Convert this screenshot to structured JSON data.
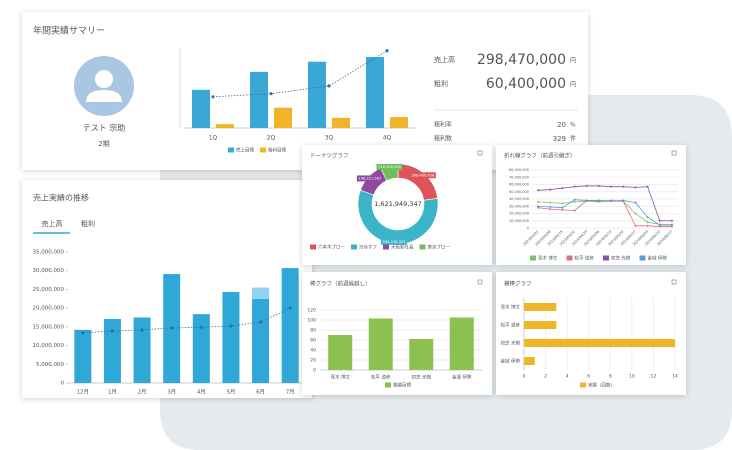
{
  "summary": {
    "title": "年間実績サマリー",
    "user_name": "テスト 宗助",
    "term": "2期",
    "stats": [
      {
        "label": "売上高",
        "value": "298,470,000",
        "unit": "円"
      },
      {
        "label": "粗利",
        "value": "60,400,000",
        "unit": "円"
      },
      {
        "label": "粗利率",
        "value": "20",
        "unit": "%"
      },
      {
        "label": "粗利数",
        "value": "329",
        "unit": "件"
      }
    ]
  },
  "trend": {
    "title": "売上実績の推移",
    "tabs": [
      "売上高",
      "粗利"
    ]
  },
  "chart_data": [
    {
      "type": "bar",
      "categories": [
        "1Q",
        "2Q",
        "3Q",
        "4Q"
      ],
      "ylim": [
        0,
        100
      ],
      "series": [
        {
          "name": "売上目標",
          "color": "#3aa7d6",
          "values": [
            49,
            72,
            85,
            91
          ]
        },
        {
          "name": "粗利目標",
          "color": "#f0b429",
          "values": [
            5,
            26,
            13,
            14
          ]
        },
        {
          "type": "line",
          "style": "dotted",
          "color": "#2e6fa8",
          "values": [
            40,
            44,
            54,
            99
          ]
        }
      ]
    },
    {
      "type": "bar",
      "stacked": true,
      "categories": [
        "12月",
        "1月",
        "2月",
        "3月",
        "4月",
        "5月",
        "6月",
        "7月"
      ],
      "ylim": [
        0,
        35000000
      ],
      "yticks": [
        0,
        {
          "value": 5000000,
          "label": "5,000,000"
        },
        {
          "value": 10000000,
          "label": "10,000,000"
        },
        {
          "value": 15000000,
          "label": "15,000,000"
        },
        {
          "value": 20000000,
          "label": "20,000,000"
        },
        {
          "value": 25000000,
          "label": "25,000,000"
        },
        {
          "value": 30000000,
          "label": "30,000,000"
        },
        {
          "value": 35000000,
          "label": "35,000,000"
        }
      ],
      "series": [
        {
          "color": "#2fa8d8",
          "values": [
            14200000,
            17100000,
            17500000,
            29100000,
            18400000,
            24300000,
            22500000,
            30700000
          ]
        },
        {
          "color": "#8fd3ee",
          "values": [
            null,
            null,
            null,
            null,
            null,
            null,
            3000000,
            null
          ]
        },
        {
          "type": "line",
          "style": "dotted",
          "color": "#2e6fa8",
          "values": [
            13400000,
            13900000,
            14200000,
            14700000,
            14900000,
            15200000,
            16300000,
            20000000
          ]
        }
      ]
    },
    {
      "type": "donut",
      "title": "ドーナツグラフ",
      "center_label": "1,621,949,347",
      "categories": [
        "六本木ブロー",
        "渋谷オフ",
        "大阪新社長",
        "東京ブロー"
      ],
      "values": [
        368409458,
        939218322,
        198321567,
        116000000
      ],
      "value_labels": [
        "368,409,458",
        "939,218,322",
        "198,321,567",
        "116,000,000"
      ],
      "colors": [
        "#e0535a",
        "#3bb4c8",
        "#8e4a9e",
        "#6cbf5b"
      ]
    },
    {
      "type": "line",
      "title": "折れ線グラフ（前週引継ぎ）",
      "grid": true,
      "categories": [
        "2023/04/01",
        "2023/04/08",
        "2023/04/15",
        "2023/04/22",
        "2023/04/29",
        "2023/05/06",
        "2023/05/13",
        "2023/05/20",
        "2023/05/27",
        "2023/06/03",
        "2023/06/10",
        "2023/06/17"
      ],
      "ylim": [
        0,
        80000000
      ],
      "yticks": [
        0,
        {
          "value": 10000000,
          "label": "10,000,000"
        },
        {
          "value": 20000000,
          "label": "20,000,000"
        },
        {
          "value": 30000000,
          "label": "30,000,000"
        },
        {
          "value": 40000000,
          "label": "40,000,000"
        },
        {
          "value": 50000000,
          "label": "50,000,000"
        },
        {
          "value": 60000000,
          "label": "60,000,000"
        },
        {
          "value": 70000000,
          "label": "70,000,000"
        },
        {
          "value": 80000000,
          "label": "80,000,000"
        }
      ],
      "series": [
        {
          "name": "青木 博文",
          "color": "#7cc46b",
          "values": [
            36000000,
            35000000,
            34000000,
            36000000,
            37000000,
            36000000,
            37000000,
            37000000,
            20000000,
            8000000,
            5000000,
            5000000
          ]
        },
        {
          "name": "松平 道彦",
          "color": "#e06c8c",
          "values": [
            28000000,
            26000000,
            25000000,
            24000000,
            38000000,
            37000000,
            38000000,
            37000000,
            3000000,
            3000000,
            2000000,
            2000000
          ]
        },
        {
          "name": "初芝 光樹",
          "color": "#8b4fa3",
          "values": [
            52000000,
            53000000,
            55000000,
            57000000,
            58000000,
            58000000,
            57000000,
            57000000,
            56000000,
            57000000,
            10000000,
            10000000
          ]
        },
        {
          "name": "金城 伊勢",
          "color": "#5b9bd5",
          "values": [
            30000000,
            29000000,
            28000000,
            39000000,
            38000000,
            38000000,
            37000000,
            38000000,
            35000000,
            15000000,
            4000000,
            4000000
          ]
        }
      ]
    },
    {
      "type": "bar",
      "title": "棒グラフ（前週繰越し）",
      "grid": true,
      "categories": [
        "青木 博文",
        "松平 道彦",
        "初芝 光樹",
        "金城 伊勢"
      ],
      "ylim": [
        0,
        120
      ],
      "yticks": [
        0,
        20,
        40,
        60,
        80,
        100,
        120
      ],
      "series": [
        {
          "name": "業績目標",
          "color": "#8cc152",
          "values": [
            70,
            103,
            62,
            105
          ]
        }
      ]
    },
    {
      "type": "bar",
      "orientation": "horizontal",
      "title": "横棒グラフ",
      "grid": true,
      "categories": [
        "青木 博文",
        "松平 道彦",
        "初芝 光樹",
        "金城 伊勢"
      ],
      "xlim": [
        0,
        14
      ],
      "xticks": [
        0,
        2,
        4,
        6,
        8,
        10,
        12,
        14
      ],
      "series": [
        {
          "name": "実績（回数）",
          "color": "#f0b429",
          "values": [
            3,
            3,
            14,
            1
          ]
        }
      ]
    }
  ]
}
